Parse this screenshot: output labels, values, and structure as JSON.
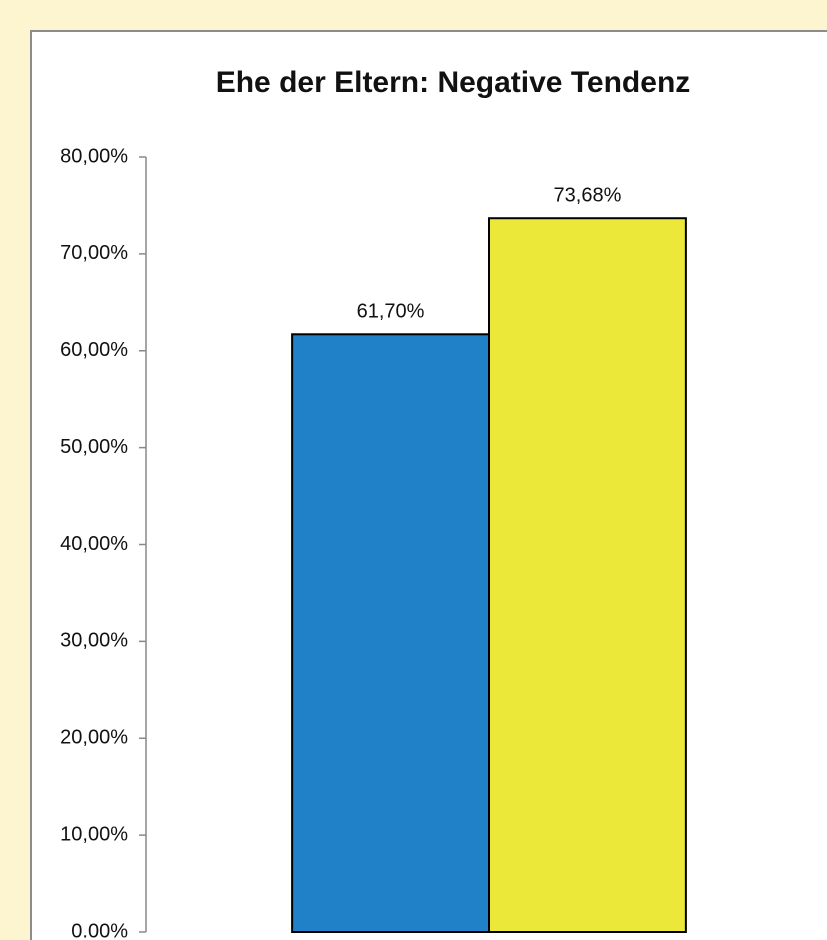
{
  "chart_data": {
    "type": "bar",
    "title": "Ehe der Eltern: Negative Tendenz",
    "categories": [
      null
    ],
    "series": [
      {
        "color": "#2080c8",
        "values": [
          61.7
        ],
        "value_labels": [
          "61,70%"
        ]
      },
      {
        "color": "#ece83a",
        "values": [
          73.68
        ],
        "value_labels": [
          "73,68%"
        ]
      }
    ],
    "ylim": [
      0,
      80
    ],
    "yticks": [
      {
        "value": 0,
        "label": "0.00%"
      },
      {
        "value": 10,
        "label": "10,00%"
      },
      {
        "value": 20,
        "label": "20,00%"
      },
      {
        "value": 30,
        "label": "30,00%"
      },
      {
        "value": 40,
        "label": "40,00%"
      },
      {
        "value": 50,
        "label": "50,00%"
      },
      {
        "value": 60,
        "label": "60,00%"
      },
      {
        "value": 70,
        "label": "70,00%"
      },
      {
        "value": 80,
        "label": "80,00%"
      }
    ],
    "grid": false
  }
}
